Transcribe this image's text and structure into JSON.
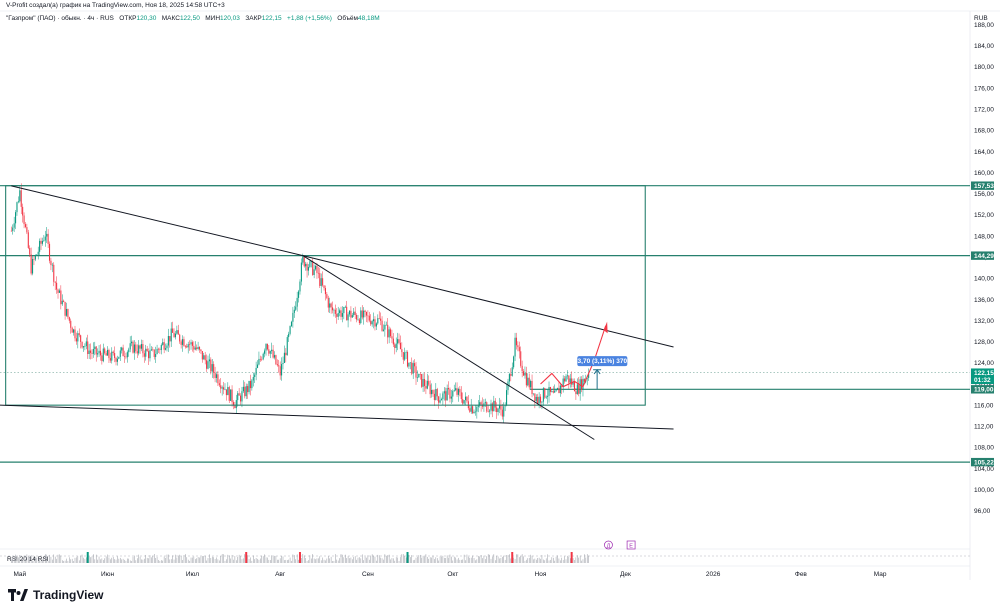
{
  "header": {
    "attribution": "V-Profit создал(а) график на TradingView.com, Ноя 18, 2025 14:58 UTC+3"
  },
  "legend": {
    "symbol": "\"Газпром\" (ПАО) · обыкн. · 4ч · RUS",
    "open_label": "ОТКР",
    "open": "120,30",
    "high_label": "МАКС",
    "high": "122,50",
    "low_label": "МИН",
    "low": "120,03",
    "close_label": "ЗАКР",
    "close": "122,15",
    "change": "+1,88 (+1,56%)",
    "volume_label": "Объём",
    "volume": "48,18M"
  },
  "currency": "RUB",
  "colors": {
    "up": "#089981",
    "down": "#f23645",
    "level": "#26806e",
    "trendline": "#131722",
    "projection": "#f23645",
    "measure": "#2962ff"
  },
  "chart_data": {
    "type": "candlestick",
    "symbol": "\"Газпром\" (ПАО) · обыкн.",
    "timeframe": "4ч",
    "ylim": [
      93,
      192
    ],
    "y_ticks": [
      "96,00",
      "100,00",
      "104,00",
      "108,00",
      "112,00",
      "116,00",
      "120,00",
      "124,00",
      "128,00",
      "132,00",
      "136,00",
      "140,00",
      "144,00",
      "148,00",
      "152,00",
      "156,00",
      "160,00",
      "164,00",
      "168,00",
      "172,00",
      "176,00",
      "180,00",
      "184,00",
      "188,00"
    ],
    "x_ticks": [
      "Май",
      "Июн",
      "Июл",
      "Авг",
      "Сен",
      "Окт",
      "Ноя",
      "Дек",
      "2026",
      "Фев",
      "Мар"
    ],
    "price_path": [
      {
        "x": "2025-04-28",
        "y": 149.0
      },
      {
        "x": "2025-05-01",
        "y": 156.5
      },
      {
        "x": "2025-05-05",
        "y": 142.0
      },
      {
        "x": "2025-05-10",
        "y": 148.5
      },
      {
        "x": "2025-05-14",
        "y": 138.0
      },
      {
        "x": "2025-05-20",
        "y": 130.0
      },
      {
        "x": "2025-05-26",
        "y": 126.0
      },
      {
        "x": "2025-06-03",
        "y": 125.0
      },
      {
        "x": "2025-06-10",
        "y": 127.0
      },
      {
        "x": "2025-06-17",
        "y": 125.5
      },
      {
        "x": "2025-06-24",
        "y": 129.5
      },
      {
        "x": "2025-07-02",
        "y": 127.0
      },
      {
        "x": "2025-07-09",
        "y": 122.0
      },
      {
        "x": "2025-07-16",
        "y": 116.5
      },
      {
        "x": "2025-07-22",
        "y": 120.0
      },
      {
        "x": "2025-07-27",
        "y": 128.0
      },
      {
        "x": "2025-08-01",
        "y": 122.0
      },
      {
        "x": "2025-08-05",
        "y": 131.0
      },
      {
        "x": "2025-08-09",
        "y": 143.5
      },
      {
        "x": "2025-08-14",
        "y": 141.0
      },
      {
        "x": "2025-08-19",
        "y": 134.0
      },
      {
        "x": "2025-08-27",
        "y": 133.0
      },
      {
        "x": "2025-09-05",
        "y": 132.0
      },
      {
        "x": "2025-09-12",
        "y": 127.0
      },
      {
        "x": "2025-09-19",
        "y": 121.0
      },
      {
        "x": "2025-09-26",
        "y": 117.5
      },
      {
        "x": "2025-10-02",
        "y": 118.5
      },
      {
        "x": "2025-10-08",
        "y": 115.5
      },
      {
        "x": "2025-10-14",
        "y": 116.0
      },
      {
        "x": "2025-10-19",
        "y": 115.0
      },
      {
        "x": "2025-10-23",
        "y": 127.5
      },
      {
        "x": "2025-10-27",
        "y": 121.0
      },
      {
        "x": "2025-10-31",
        "y": 117.0
      },
      {
        "x": "2025-11-03",
        "y": 118.5
      },
      {
        "x": "2025-11-06",
        "y": 117.5
      },
      {
        "x": "2025-11-10",
        "y": 121.5
      },
      {
        "x": "2025-11-14",
        "y": 119.0
      },
      {
        "x": "2025-11-18",
        "y": 122.15
      }
    ],
    "levels": [
      157.53,
      144.29,
      122.15,
      119.0,
      105.22
    ],
    "level_labels": [
      {
        "value": "157,53",
        "color": "#26806e"
      },
      {
        "value": "144,29",
        "color": "#26806e"
      },
      {
        "value": "122,15",
        "color": "#089981"
      },
      {
        "value": "01:32",
        "color": "#089981"
      },
      {
        "value": "119,00",
        "color": "#26806e"
      },
      {
        "value": "105,22",
        "color": "#26806e"
      }
    ],
    "measure_label": "3,70 (3,11%) 370",
    "rsi_label": "RSI 20 14 RSI",
    "event_markers": [
      "Д",
      "Е"
    ],
    "grid": false
  }
}
